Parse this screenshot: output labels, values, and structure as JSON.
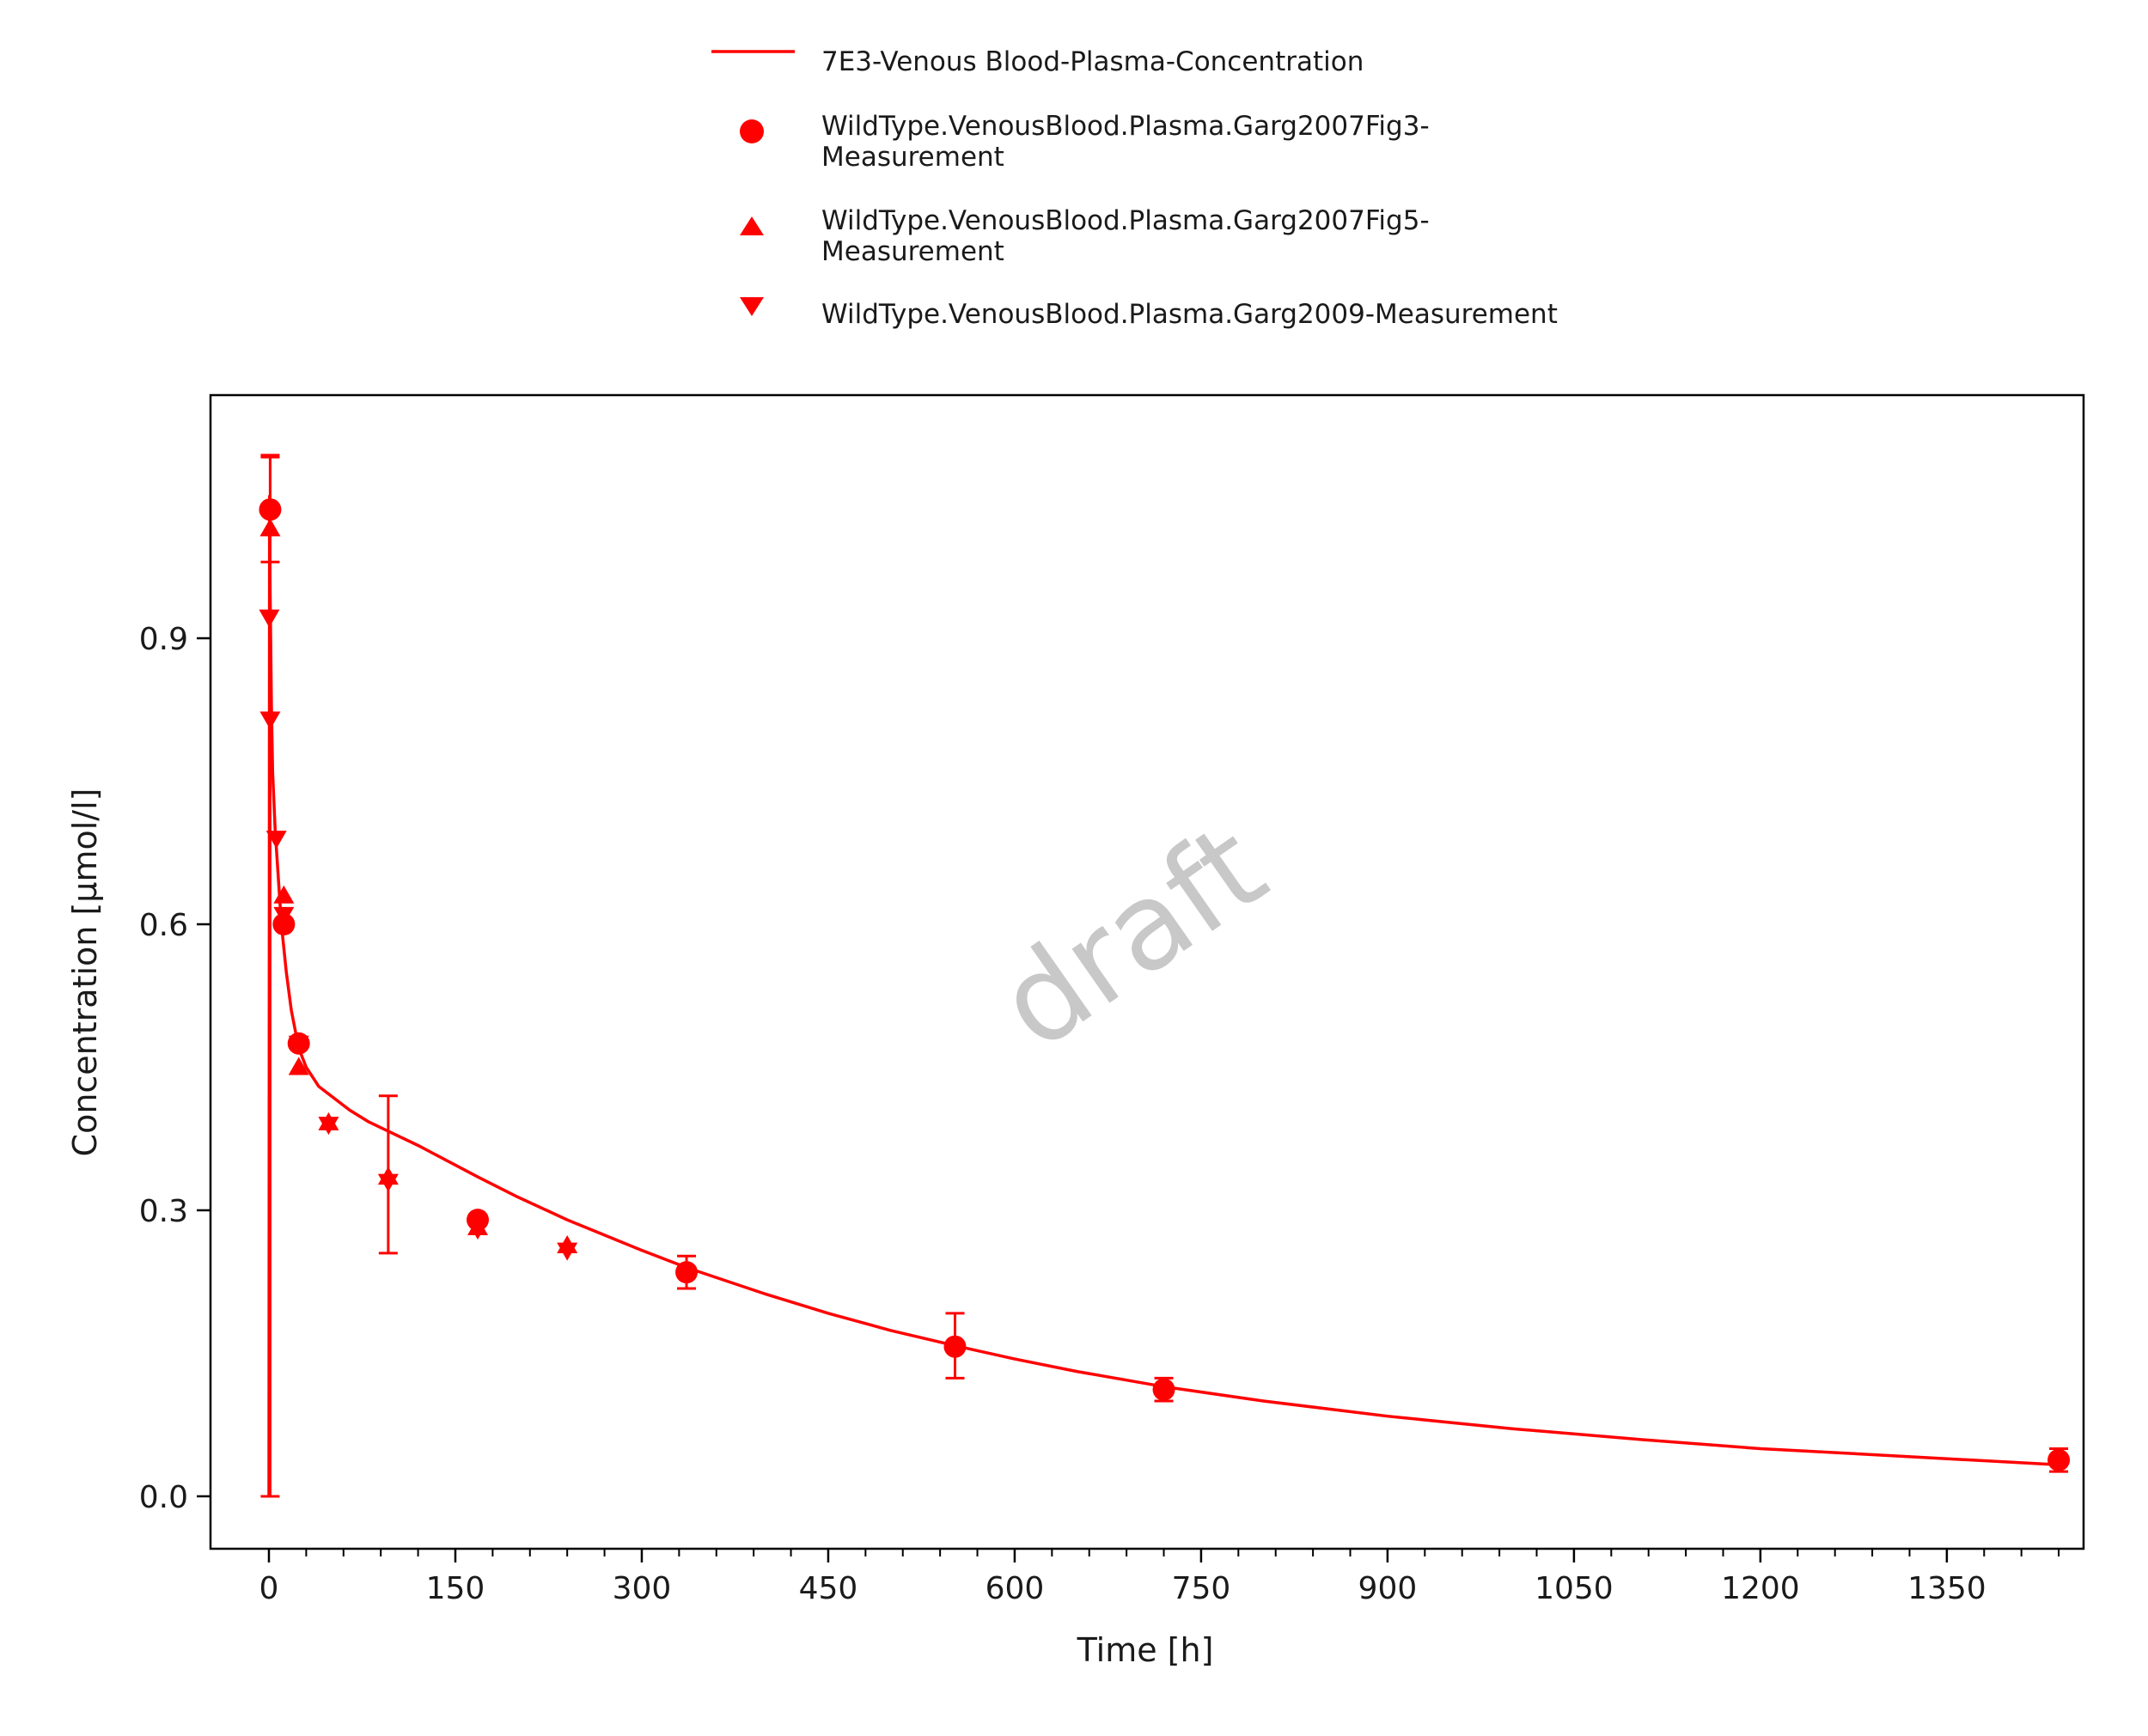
{
  "chart_data": {
    "type": "scatter",
    "xlabel": "Time [h]",
    "ylabel": "Concentration [µmol/l]",
    "xlim": [
      -47,
      1460
    ],
    "ylim": [
      -0.055,
      1.155
    ],
    "x_ticks": [
      0,
      150,
      300,
      450,
      600,
      750,
      900,
      1050,
      1200,
      1350
    ],
    "x_minor_step": 30,
    "y_ticks": [
      0.0,
      0.3,
      0.6,
      0.9
    ],
    "y_tick_labels": [
      "0.0",
      "0.3",
      "0.6",
      "0.9"
    ],
    "grid": false,
    "legend_position": "top",
    "watermark": "draft",
    "color": "#ff0000",
    "series": [
      {
        "name": "7E3-Venous Blood-Plasma-Concentration",
        "kind": "line",
        "x": [
          0,
          0.5,
          1,
          2,
          3,
          5,
          7,
          10,
          14,
          18,
          24,
          30,
          40,
          50,
          65,
          80,
          96,
          120,
          168,
          200,
          240,
          300,
          336,
          400,
          450,
          500,
          552,
          600,
          650,
          720,
          800,
          900,
          1000,
          1100,
          1200,
          1300,
          1440
        ],
        "y": [
          0,
          1.05,
          0.95,
          0.83,
          0.76,
          0.7,
          0.66,
          0.6,
          0.55,
          0.51,
          0.47,
          0.45,
          0.43,
          0.42,
          0.405,
          0.393,
          0.383,
          0.368,
          0.335,
          0.314,
          0.29,
          0.258,
          0.24,
          0.212,
          0.192,
          0.174,
          0.158,
          0.144,
          0.131,
          0.115,
          0.1,
          0.084,
          0.071,
          0.06,
          0.05,
          0.043,
          0.033
        ]
      },
      {
        "name": "WildType.VenousBlood.Plasma.Garg2007Fig3-Measurement",
        "kind": "circle",
        "x": [
          1,
          12,
          24,
          168,
          336,
          552,
          720,
          1440
        ],
        "y": [
          1.035,
          0.6,
          0.475,
          0.29,
          0.235,
          0.157,
          0.112,
          0.038
        ],
        "err_low": [
          0.055,
          null,
          null,
          null,
          0.017,
          0.033,
          0.012,
          0.012
        ],
        "err_high": [
          0.057,
          null,
          null,
          null,
          0.017,
          0.035,
          0.012,
          0.012
        ]
      },
      {
        "name": "WildType.VenousBlood.Plasma.Garg2007Fig5-Measurement",
        "kind": "triangle-up",
        "x": [
          1,
          12,
          24,
          48,
          96,
          168,
          240
        ],
        "y": [
          1.015,
          0.63,
          0.45,
          0.392,
          0.335,
          0.282,
          0.263
        ],
        "err_low": [
          1.015,
          null,
          null,
          null,
          0.08,
          null,
          null
        ],
        "err_high": [
          0.075,
          null,
          null,
          null,
          0.085,
          null,
          null
        ]
      },
      {
        "name": "WildType.VenousBlood.Plasma.Garg2009-Measurement",
        "kind": "triangle-down",
        "x": [
          0.3,
          1,
          6,
          12,
          24,
          48,
          96,
          168,
          240
        ],
        "y": [
          0.922,
          0.815,
          0.69,
          0.61,
          0.475,
          0.39,
          0.33,
          0.28,
          0.258
        ],
        "err_low": [
          null,
          null,
          null,
          null,
          null,
          null,
          null,
          null,
          null
        ],
        "err_high": [
          null,
          null,
          null,
          null,
          null,
          null,
          null,
          null,
          null
        ]
      }
    ]
  }
}
